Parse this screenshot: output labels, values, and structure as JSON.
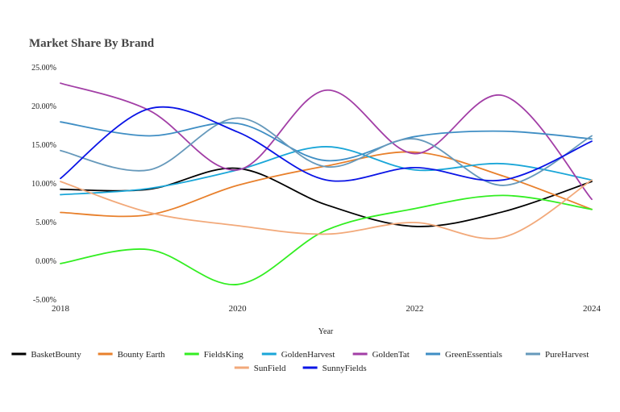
{
  "chart_data": {
    "type": "line",
    "title": "Market Share By Brand",
    "xlabel": "Year",
    "ylabel": "",
    "x": [
      2018,
      2019,
      2020,
      2021,
      2022,
      2023,
      2024
    ],
    "x_ticks": [
      "2018",
      "2020",
      "2022",
      "2024"
    ],
    "y_ticks": [
      "-5.00%",
      "0.00%",
      "5.00%",
      "10.00%",
      "15.00%",
      "20.00%",
      "25.00%"
    ],
    "ylim": [
      -5,
      25
    ],
    "grid": false,
    "legend_position": "bottom",
    "series": [
      {
        "name": "BasketBounty",
        "color": "#000000",
        "values": [
          9.3,
          9.3,
          12.0,
          7.3,
          4.5,
          6.4,
          10.3
        ]
      },
      {
        "name": "Bounty Earth",
        "color": "#e8802c",
        "values": [
          6.3,
          6.0,
          9.8,
          12.3,
          14.1,
          11.0,
          6.7
        ]
      },
      {
        "name": "FieldsKing",
        "color": "#33ee22",
        "values": [
          -0.3,
          1.5,
          -3.0,
          4.0,
          6.8,
          8.5,
          6.7
        ]
      },
      {
        "name": "GoldenHarvest",
        "color": "#1aa6d8",
        "values": [
          8.6,
          9.4,
          11.8,
          14.8,
          11.8,
          12.6,
          10.5
        ]
      },
      {
        "name": "GoldenTat",
        "color": "#a23ea6",
        "values": [
          23.0,
          19.5,
          11.8,
          22.1,
          13.9,
          21.4,
          8.0
        ]
      },
      {
        "name": "GreenEssentials",
        "color": "#3f8ec4",
        "values": [
          18.0,
          16.2,
          17.8,
          13.0,
          16.1,
          16.8,
          15.8
        ]
      },
      {
        "name": "PureHarvest",
        "color": "#6699bb",
        "values": [
          14.3,
          11.8,
          18.5,
          12.2,
          15.8,
          9.8,
          16.2
        ]
      },
      {
        "name": "SunField",
        "color": "#f2a97a",
        "values": [
          10.3,
          6.3,
          4.6,
          3.5,
          5.0,
          3.1,
          10.5
        ]
      },
      {
        "name": "SunnyFields",
        "color": "#0a14e6",
        "values": [
          10.7,
          19.7,
          16.7,
          10.5,
          12.1,
          10.5,
          15.5
        ]
      }
    ]
  }
}
